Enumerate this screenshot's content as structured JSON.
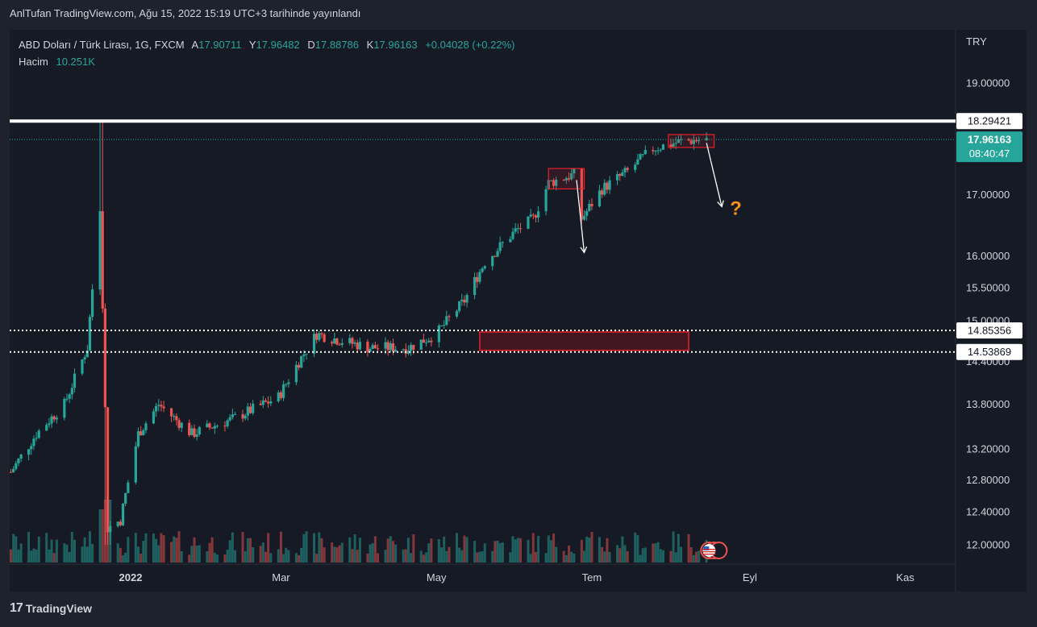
{
  "publish_line": "AnlTufan TradingView.com, Ağu 15, 2022 15:19 UTC+3 tarihinde yayınlandı",
  "legend": {
    "symbol": "ABD Doları / Türk Lirası, 1G, FXCM",
    "open_label": "A",
    "open": "17.90711",
    "high_label": "Y",
    "high": "17.96482",
    "low_label": "D",
    "low": "17.88786",
    "close_label": "K",
    "close": "17.96163",
    "change": "+0.04028 (+0.22%)",
    "volume_label": "Hacim",
    "volume": "10.251K"
  },
  "footer": {
    "brand": "TradingView"
  },
  "colors": {
    "up": "#26a69a",
    "down": "#ef5350",
    "background": "#161a25",
    "frame": "#1e222d",
    "annotation_red": "#e8202a",
    "question": "#f7931a"
  },
  "chart_data": {
    "type": "candlestick",
    "currency": "TRY",
    "y_ticks": [
      "19.00000",
      "17.00000",
      "16.00000",
      "15.50000",
      "15.00000",
      "14.40000",
      "13.80000",
      "13.20000",
      "12.80000",
      "12.40000",
      "12.00000"
    ],
    "x_ticks": [
      "2022",
      "Mar",
      "May",
      "Tem",
      "Eyl",
      "Kas"
    ],
    "price_labels": [
      {
        "value": "18.29421",
        "kind": "horizontal-line"
      },
      {
        "value": "17.96163",
        "kind": "last-price",
        "countdown": "08:40:47"
      },
      {
        "value": "14.85356",
        "kind": "dotted-line"
      },
      {
        "value": "14.53869",
        "kind": "dotted-line"
      }
    ],
    "annotation": "?",
    "series_path": [
      {
        "date": "2021-11-15",
        "price": 12.9
      },
      {
        "date": "2021-11-25",
        "price": 13.4
      },
      {
        "date": "2021-12-06",
        "price": 13.8
      },
      {
        "date": "2021-12-15",
        "price": 14.6
      },
      {
        "date": "2021-12-20",
        "price": 16.8
      },
      {
        "date": "2021-12-23",
        "price": 12.2
      },
      {
        "date": "2021-12-28",
        "price": 12.3
      },
      {
        "date": "2022-01-04",
        "price": 13.4
      },
      {
        "date": "2022-01-12",
        "price": 13.8
      },
      {
        "date": "2022-01-25",
        "price": 13.4
      },
      {
        "date": "2022-02-10",
        "price": 13.6
      },
      {
        "date": "2022-02-28",
        "price": 13.9
      },
      {
        "date": "2022-03-08",
        "price": 14.4
      },
      {
        "date": "2022-03-15",
        "price": 14.8
      },
      {
        "date": "2022-03-25",
        "price": 14.7
      },
      {
        "date": "2022-04-05",
        "price": 14.6
      },
      {
        "date": "2022-04-20",
        "price": 14.6
      },
      {
        "date": "2022-05-01",
        "price": 14.8
      },
      {
        "date": "2022-05-12",
        "price": 15.3
      },
      {
        "date": "2022-05-20",
        "price": 15.9
      },
      {
        "date": "2022-06-01",
        "price": 16.4
      },
      {
        "date": "2022-06-08",
        "price": 16.6
      },
      {
        "date": "2022-06-14",
        "price": 17.2
      },
      {
        "date": "2022-06-24",
        "price": 17.35
      },
      {
        "date": "2022-06-27",
        "price": 16.6
      },
      {
        "date": "2022-07-05",
        "price": 17.1
      },
      {
        "date": "2022-07-15",
        "price": 17.4
      },
      {
        "date": "2022-07-25",
        "price": 17.8
      },
      {
        "date": "2022-08-05",
        "price": 17.93
      },
      {
        "date": "2022-08-15",
        "price": 17.96
      }
    ]
  }
}
